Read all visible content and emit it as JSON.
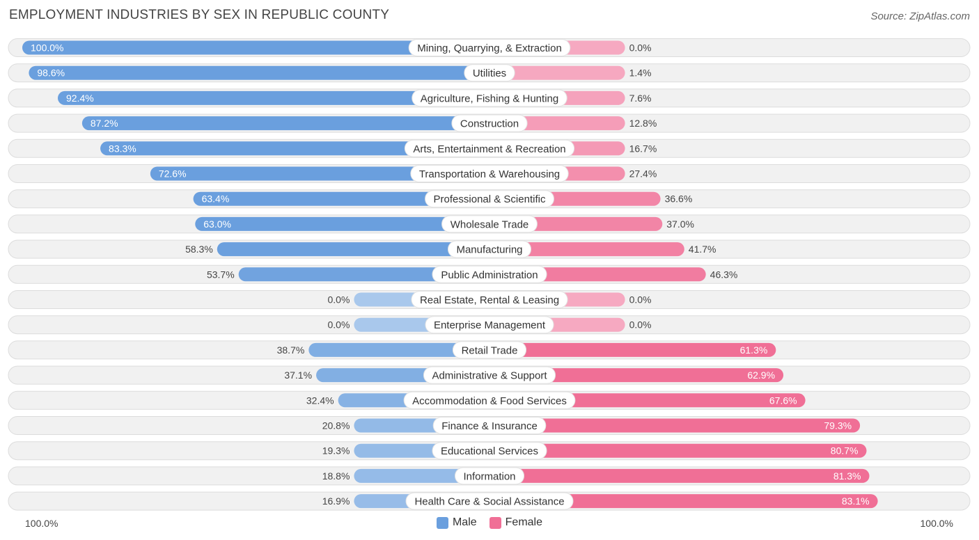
{
  "header": {
    "title": "EMPLOYMENT INDUSTRIES BY SEX IN REPUBLIC COUNTY",
    "source": "Source: ZipAtlas.com"
  },
  "legend": {
    "male_label": "Male",
    "female_label": "Female"
  },
  "axis": {
    "left_label": "100.0%",
    "right_label": "100.0%"
  },
  "colors": {
    "male": "#6a9fde",
    "male_light": "#a9c8ec",
    "female": "#f06f96",
    "female_light": "#f6a9c1",
    "row_bg": "#f1f1f1",
    "row_border": "#dcdcdc"
  },
  "chart_data": {
    "type": "bar",
    "orientation": "horizontal-diverging",
    "title": "EMPLOYMENT INDUSTRIES BY SEX IN REPUBLIC COUNTY",
    "xlim": [
      -100,
      100
    ],
    "categories": [
      "Mining, Quarrying, & Extraction",
      "Utilities",
      "Agriculture, Fishing & Hunting",
      "Construction",
      "Arts, Entertainment & Recreation",
      "Transportation & Warehousing",
      "Professional & Scientific",
      "Wholesale Trade",
      "Manufacturing",
      "Public Administration",
      "Real Estate, Rental & Leasing",
      "Enterprise Management",
      "Retail Trade",
      "Administrative & Support",
      "Accommodation & Food Services",
      "Finance & Insurance",
      "Educational Services",
      "Information",
      "Health Care & Social Assistance"
    ],
    "series": [
      {
        "name": "Male",
        "values": [
          100.0,
          98.6,
          92.4,
          87.2,
          83.3,
          72.6,
          63.4,
          63.0,
          58.3,
          53.7,
          0.0,
          0.0,
          38.7,
          37.1,
          32.4,
          20.8,
          19.3,
          18.8,
          16.9
        ],
        "labels": [
          "100.0%",
          "98.6%",
          "92.4%",
          "87.2%",
          "83.3%",
          "72.6%",
          "63.4%",
          "63.0%",
          "58.3%",
          "53.7%",
          "0.0%",
          "0.0%",
          "38.7%",
          "37.1%",
          "32.4%",
          "20.8%",
          "19.3%",
          "18.8%",
          "16.9%"
        ]
      },
      {
        "name": "Female",
        "values": [
          0.0,
          1.4,
          7.6,
          12.8,
          16.7,
          27.4,
          36.6,
          37.0,
          41.7,
          46.3,
          0.0,
          0.0,
          61.3,
          62.9,
          67.6,
          79.3,
          80.7,
          81.3,
          83.1
        ],
        "labels": [
          "0.0%",
          "1.4%",
          "7.6%",
          "12.8%",
          "16.7%",
          "27.4%",
          "36.6%",
          "37.0%",
          "41.7%",
          "46.3%",
          "0.0%",
          "0.0%",
          "61.3%",
          "62.9%",
          "67.6%",
          "79.3%",
          "80.7%",
          "81.3%",
          "83.1%"
        ]
      }
    ]
  }
}
